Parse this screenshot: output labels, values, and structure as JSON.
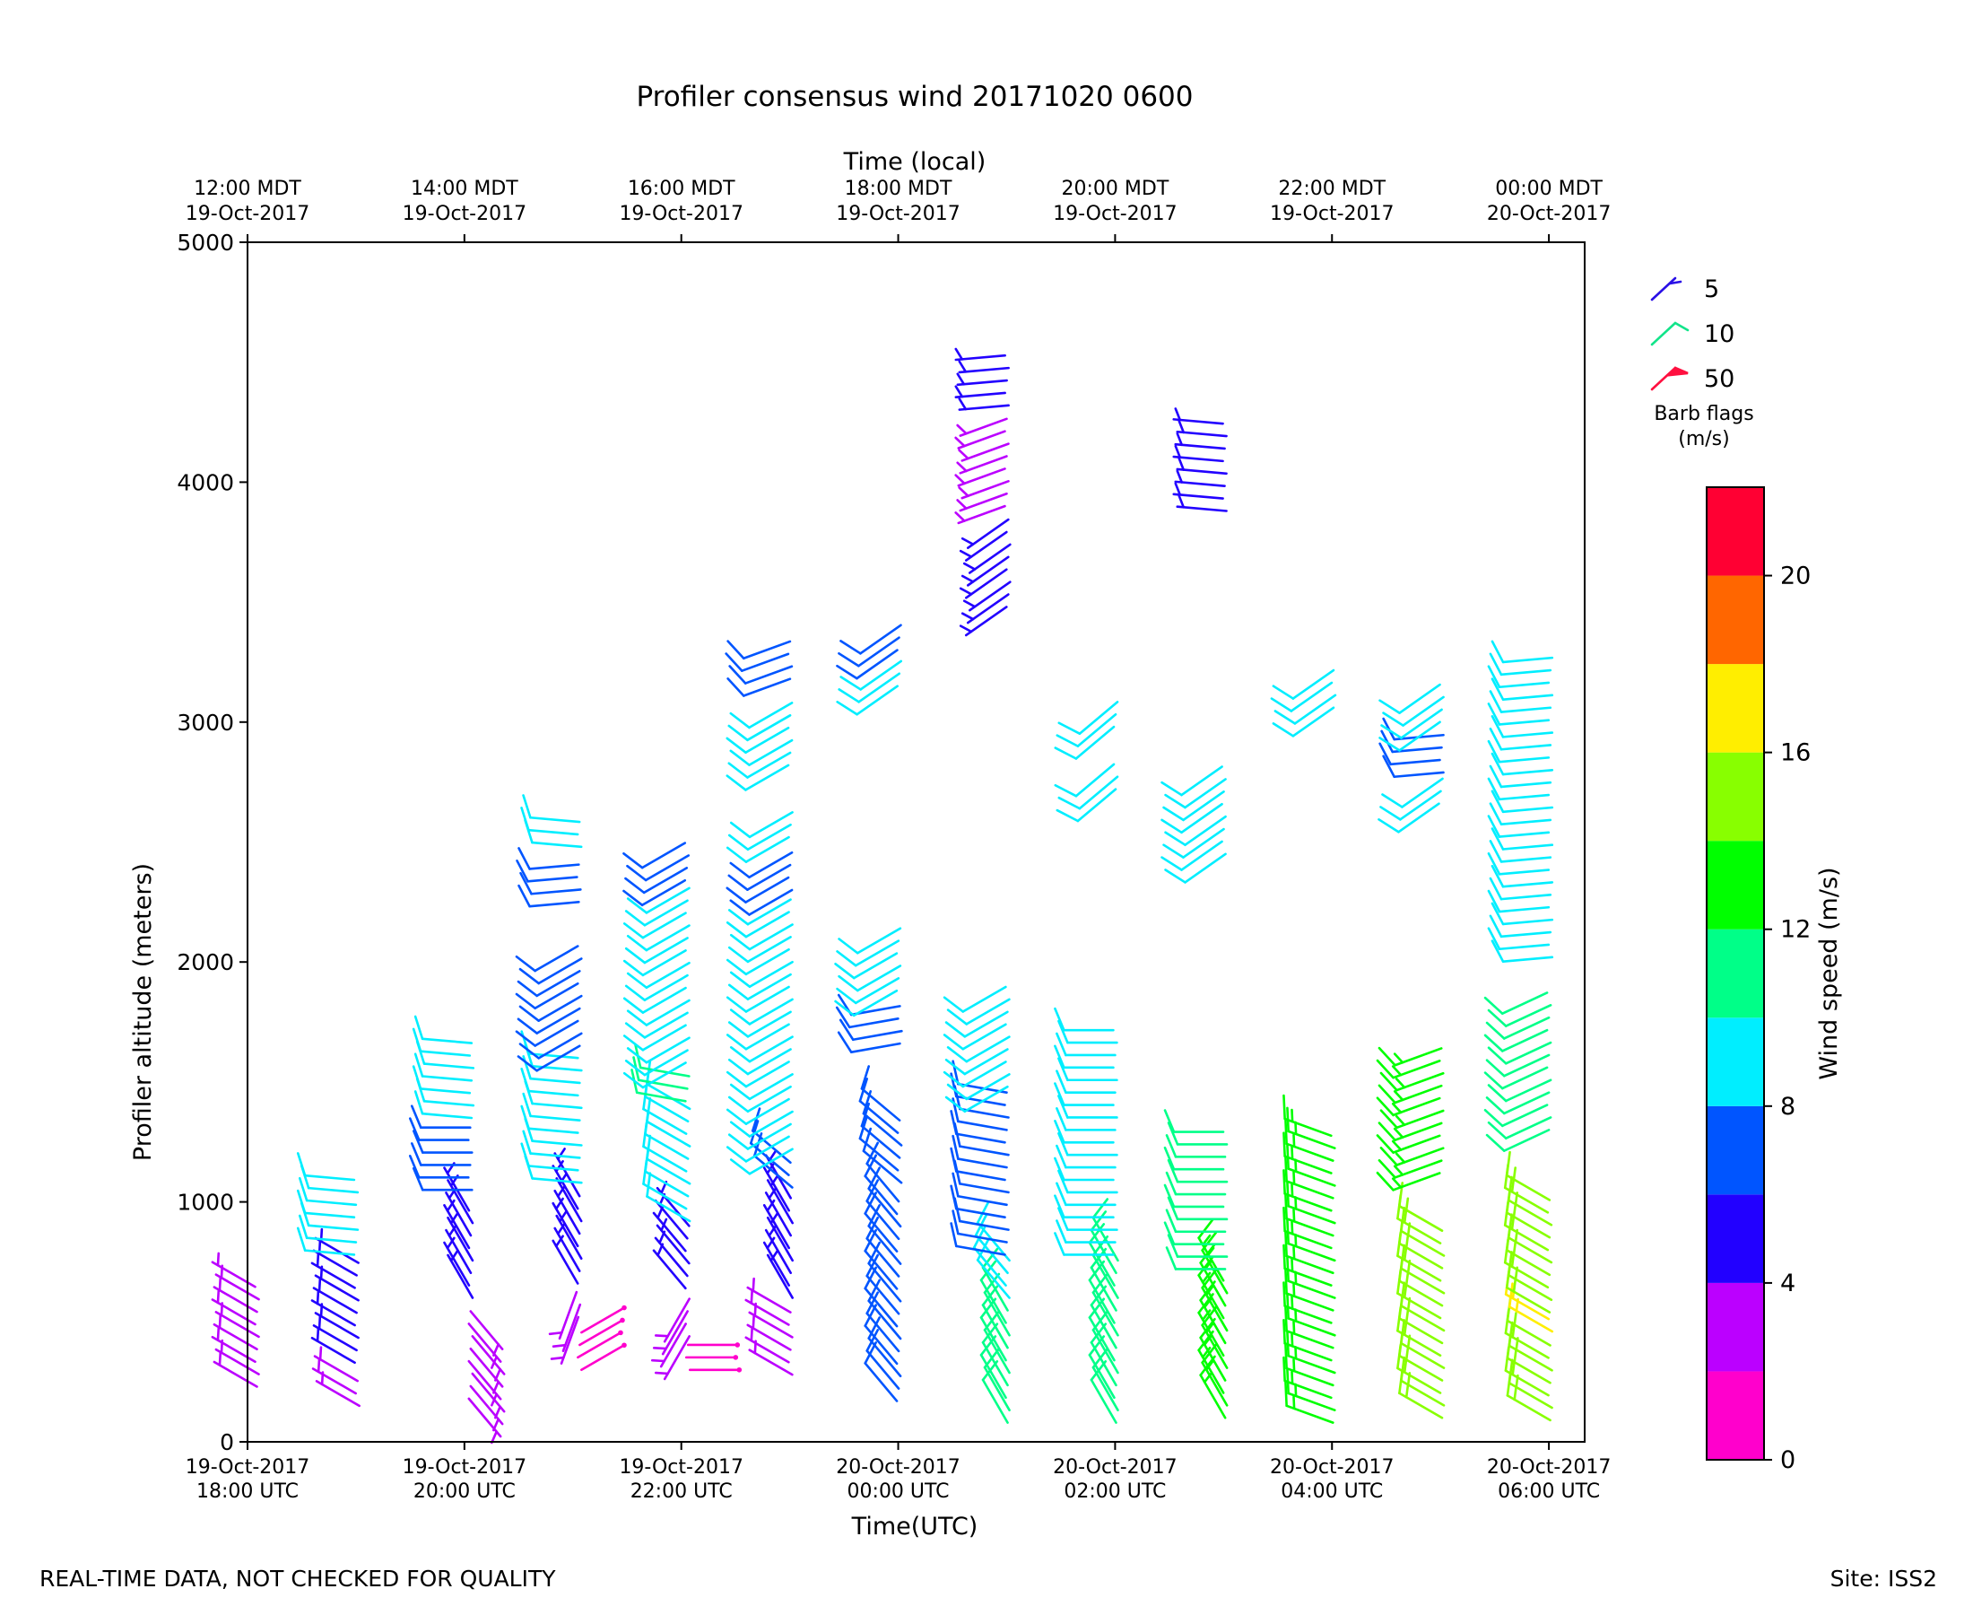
{
  "chart_data": {
    "type": "wind-barbs",
    "title": "Profiler consensus wind 20171020 0600",
    "top_axis_label": "Time (local)",
    "xlabel": "Time(UTC)",
    "ylabel": "Profiler altitude (meters)",
    "ylim": [
      0,
      5000
    ],
    "xlim_hours_from_start": [
      0,
      12.33
    ],
    "y_ticks": [
      {
        "value": 0,
        "label": "0"
      },
      {
        "value": 1000,
        "label": "1000"
      },
      {
        "value": 2000,
        "label": "2000"
      },
      {
        "value": 3000,
        "label": "3000"
      },
      {
        "value": 4000,
        "label": "4000"
      },
      {
        "value": 5000,
        "label": "5000"
      }
    ],
    "x_ticks_utc": [
      {
        "hour": 0,
        "line1": "19-Oct-2017",
        "line2": "18:00 UTC"
      },
      {
        "hour": 2,
        "line1": "19-Oct-2017",
        "line2": "20:00 UTC"
      },
      {
        "hour": 4,
        "line1": "19-Oct-2017",
        "line2": "22:00 UTC"
      },
      {
        "hour": 6,
        "line1": "20-Oct-2017",
        "line2": "00:00 UTC"
      },
      {
        "hour": 8,
        "line1": "20-Oct-2017",
        "line2": "02:00 UTC"
      },
      {
        "hour": 10,
        "line1": "20-Oct-2017",
        "line2": "04:00 UTC"
      },
      {
        "hour": 12,
        "line1": "20-Oct-2017",
        "line2": "06:00 UTC"
      }
    ],
    "x_ticks_local": [
      {
        "hour": 0,
        "line1": "12:00 MDT",
        "line2": "19-Oct-2017"
      },
      {
        "hour": 2,
        "line1": "14:00 MDT",
        "line2": "19-Oct-2017"
      },
      {
        "hour": 4,
        "line1": "16:00 MDT",
        "line2": "19-Oct-2017"
      },
      {
        "hour": 6,
        "line1": "18:00 MDT",
        "line2": "19-Oct-2017"
      },
      {
        "hour": 8,
        "line1": "20:00 MDT",
        "line2": "19-Oct-2017"
      },
      {
        "hour": 10,
        "line1": "22:00 MDT",
        "line2": "19-Oct-2017"
      },
      {
        "hour": 12,
        "line1": "00:00 MDT",
        "line2": "20-Oct-2017"
      }
    ],
    "barb_legend": {
      "title_line1": "Barb flags",
      "title_line2": "(m/s)",
      "items": [
        {
          "label": "5",
          "color": "#2a10e6"
        },
        {
          "label": "10",
          "color": "#12e48a"
        },
        {
          "label": "50",
          "color": "#ff1040"
        }
      ]
    },
    "colorbar": {
      "label": "Wind speed (m/s)",
      "range": [
        0,
        22
      ],
      "bounds": [
        0,
        2,
        4,
        6,
        8,
        10,
        12,
        14,
        16,
        18,
        20,
        22
      ],
      "colors": [
        "#ff00cc",
        "#bb00ff",
        "#2200ff",
        "#0055ff",
        "#00eeff",
        "#00ff88",
        "#00ff00",
        "#88ff00",
        "#ffee00",
        "#ff6600",
        "#ff0033"
      ],
      "ticks": [
        {
          "value": 0,
          "label": "0"
        },
        {
          "value": 4,
          "label": "4"
        },
        {
          "value": 8,
          "label": "8"
        },
        {
          "value": 12,
          "label": "12"
        },
        {
          "value": 16,
          "label": "16"
        },
        {
          "value": 20,
          "label": "20"
        }
      ]
    },
    "profiles": [
      {
        "hour": 0.08,
        "segments": [
          {
            "from": 230,
            "to": 650,
            "speed": 3.2,
            "dir": 300
          }
        ]
      },
      {
        "hour": 1.0,
        "segments": [
          {
            "from": 150,
            "to": 300,
            "speed": 3.3,
            "dir": 300
          },
          {
            "from": 330,
            "to": 750,
            "speed": 5.5,
            "dir": 300
          },
          {
            "from": 780,
            "to": 1130,
            "speed": 9.0,
            "dir": 275
          }
        ]
      },
      {
        "hour": 2.05,
        "segments": [
          {
            "from": 180,
            "to": 560,
            "speed": 2.8,
            "dir": 140
          },
          {
            "from": 600,
            "to": 1000,
            "speed": 4.5,
            "dir": 330
          },
          {
            "from": 1050,
            "to": 1320,
            "speed": 7.5,
            "dir": 270
          },
          {
            "from": 1350,
            "to": 1700,
            "speed": 9.0,
            "dir": 275
          }
        ]
      },
      {
        "hour": 3.05,
        "segments": [
          {
            "from": 300,
            "to": 500,
            "speed": 1.2,
            "dir": 60
          },
          {
            "from": 520,
            "to": 640,
            "speed": 2.8,
            "dir": 200
          },
          {
            "from": 660,
            "to": 1050,
            "speed": 4.5,
            "dir": 330
          },
          {
            "from": 1080,
            "to": 1620,
            "speed": 9.0,
            "dir": 275
          },
          {
            "from": 1650,
            "to": 2080,
            "speed": 7.5,
            "dir": 240
          },
          {
            "from": 2250,
            "to": 2450,
            "speed": 7.5,
            "dir": 265
          },
          {
            "from": 2480,
            "to": 2600,
            "speed": 9.0,
            "dir": 275
          }
        ]
      },
      {
        "hour": 4.05,
        "segments": [
          {
            "from": 300,
            "to": 420,
            "speed": 1.3,
            "dir": 90
          },
          {
            "from": 440,
            "to": 620,
            "speed": 2.5,
            "dir": 210
          },
          {
            "from": 640,
            "to": 900,
            "speed": 4.5,
            "dir": 320
          },
          {
            "from": 920,
            "to": 1400,
            "speed": 9.0,
            "dir": 300
          },
          {
            "from": 1420,
            "to": 1560,
            "speed": 11.0,
            "dir": 280
          },
          {
            "from": 1580,
            "to": 2320,
            "speed": 9.0,
            "dir": 240
          },
          {
            "from": 2340,
            "to": 2520,
            "speed": 7.5,
            "dir": 240
          }
        ]
      },
      {
        "hour": 5.0,
        "segments": [
          {
            "from": 280,
            "to": 560,
            "speed": 3.0,
            "dir": 300
          },
          {
            "from": 600,
            "to": 1040,
            "speed": 4.5,
            "dir": 330
          },
          {
            "from": 1060,
            "to": 1200,
            "speed": 7.5,
            "dir": 310
          },
          {
            "from": 1220,
            "to": 2260,
            "speed": 9.0,
            "dir": 240
          },
          {
            "from": 2300,
            "to": 2500,
            "speed": 7.5,
            "dir": 240
          },
          {
            "from": 2520,
            "to": 2650,
            "speed": 9.0,
            "dir": 240
          },
          {
            "from": 2820,
            "to": 3120,
            "speed": 9.0,
            "dir": 240
          },
          {
            "from": 3180,
            "to": 3340,
            "speed": 7.5,
            "dir": 250
          }
        ]
      },
      {
        "hour": 6.0,
        "segments": [
          {
            "from": 170,
            "to": 1050,
            "speed": 7.5,
            "dir": 320
          },
          {
            "from": 1080,
            "to": 1380,
            "speed": 7.5,
            "dir": 310
          },
          {
            "from": 1660,
            "to": 1860,
            "speed": 7.5,
            "dir": 260
          },
          {
            "from": 1880,
            "to": 2150,
            "speed": 9.0,
            "dir": 240
          },
          {
            "from": 3150,
            "to": 3280,
            "speed": 9.0,
            "dir": 235
          },
          {
            "from": 3300,
            "to": 3420,
            "speed": 7.5,
            "dir": 235
          }
        ]
      },
      {
        "hour": 7.0,
        "segments": [
          {
            "from": 80,
            "to": 580,
            "speed": 10.5,
            "dir": 330
          },
          {
            "from": 600,
            "to": 760,
            "speed": 9.0,
            "dir": 320
          },
          {
            "from": 780,
            "to": 1460,
            "speed": 7.5,
            "dir": 280
          },
          {
            "from": 1480,
            "to": 1940,
            "speed": 9.0,
            "dir": 240
          },
          {
            "from": 3480,
            "to": 3880,
            "speed": 5.0,
            "dir": 235
          },
          {
            "from": 3900,
            "to": 4300,
            "speed": 3.0,
            "dir": 250
          },
          {
            "from": 4320,
            "to": 4540,
            "speed": 5.0,
            "dir": 265
          }
        ]
      },
      {
        "hour": 8.0,
        "segments": [
          {
            "from": 80,
            "to": 760,
            "speed": 11.0,
            "dir": 330
          },
          {
            "from": 780,
            "to": 1720,
            "speed": 9.0,
            "dir": 270
          },
          {
            "from": 2720,
            "to": 2840,
            "speed": 9.0,
            "dir": 230
          },
          {
            "from": 2980,
            "to": 3100,
            "speed": 9.0,
            "dir": 230
          }
        ]
      },
      {
        "hour": 9.0,
        "segments": [
          {
            "from": 100,
            "to": 700,
            "speed": 13.0,
            "dir": 330
          },
          {
            "from": 720,
            "to": 1300,
            "speed": 11.0,
            "dir": 270
          },
          {
            "from": 2450,
            "to": 2850,
            "speed": 9.0,
            "dir": 235
          },
          {
            "from": 3880,
            "to": 4280,
            "speed": 5.0,
            "dir": 275
          }
        ]
      },
      {
        "hour": 10.0,
        "segments": [
          {
            "from": 80,
            "to": 1320,
            "speed": 13.0,
            "dir": 290
          },
          {
            "from": 3060,
            "to": 3230,
            "speed": 9.0,
            "dir": 235
          }
        ]
      },
      {
        "hour": 11.0,
        "segments": [
          {
            "from": 100,
            "to": 880,
            "speed": 14.5,
            "dir": 300
          },
          {
            "from": 1120,
            "to": 1650,
            "speed": 13.0,
            "dir": 250
          },
          {
            "from": 2660,
            "to": 2780,
            "speed": 9.0,
            "dir": 235
          },
          {
            "from": 2790,
            "to": 2980,
            "speed": 7.5,
            "dir": 265
          },
          {
            "from": 3000,
            "to": 3160,
            "speed": 9.0,
            "dir": 235
          }
        ]
      },
      {
        "hour": 12.0,
        "segments": [
          {
            "from": 90,
            "to": 440,
            "speed": 14.5,
            "dir": 300
          },
          {
            "from": 460,
            "to": 520,
            "speed": 16.5,
            "dir": 300
          },
          {
            "from": 540,
            "to": 1040,
            "speed": 14.5,
            "dir": 300
          },
          {
            "from": 1300,
            "to": 1900,
            "speed": 11.0,
            "dir": 245
          },
          {
            "from": 2020,
            "to": 3280,
            "speed": 9.0,
            "dir": 265
          }
        ]
      }
    ]
  },
  "footer": {
    "left": "REAL-TIME DATA, NOT CHECKED FOR QUALITY",
    "right": "Site: ISS2"
  }
}
